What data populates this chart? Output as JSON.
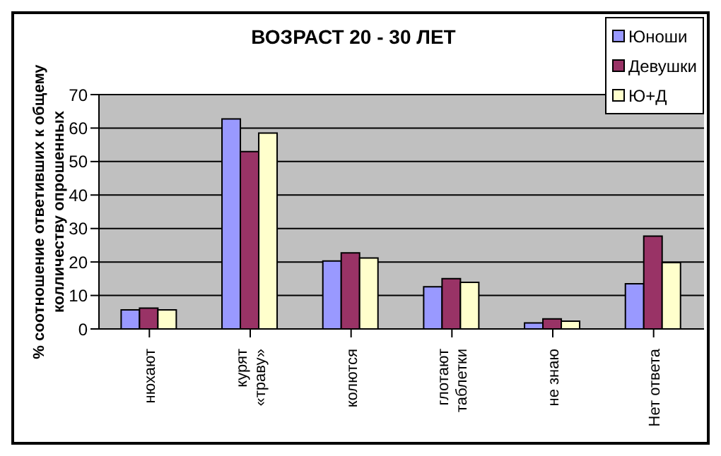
{
  "chart_data": {
    "type": "bar",
    "title": "ВОЗРАСТ 20 - 30 ЛЕТ",
    "ylabel": "% соотношение ответивших к общему колличеству опрошенных",
    "categories": [
      "нюхают",
      "курят «траву»",
      "колются",
      "глотают таблетки",
      "не знаю",
      "Нет ответа"
    ],
    "series": [
      {
        "name": "Юноши",
        "color": "#9999ff",
        "values": [
          5.7,
          62.7,
          20.3,
          12.6,
          1.8,
          13.5
        ]
      },
      {
        "name": "Девушки",
        "color": "#993366",
        "values": [
          6.2,
          53,
          22.7,
          15,
          3,
          27.7
        ]
      },
      {
        "name": "Ю+Д",
        "color": "#ffffcc",
        "values": [
          5.7,
          58.5,
          21.2,
          13.9,
          2.3,
          19.8
        ]
      }
    ],
    "ylim": [
      0,
      70
    ],
    "yticks": [
      0,
      10,
      20,
      30,
      40,
      50,
      60,
      70
    ],
    "grid": "y",
    "legend": "top right"
  }
}
